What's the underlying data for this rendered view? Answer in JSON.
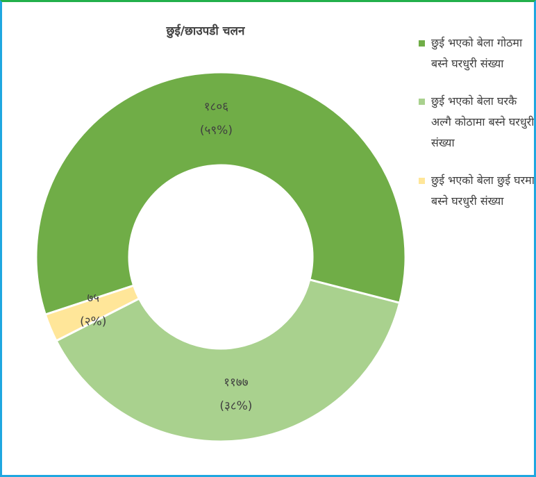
{
  "chart_data": {
    "type": "donut",
    "title": "छुई/छाउपडी चलन",
    "categories": [
      "छुई भएको बेला गोठमा बस्ने घरधुरी संख्या",
      "छुई भएको बेला घरकै अल्गै कोठामा बस्ने घरधुरी संख्या",
      "छुई भएको बेला छुई घरमा बस्ने घरधुरी संख्या"
    ],
    "values": [
      1806,
      1177,
      75
    ],
    "value_labels": [
      "१८०६",
      "११७७",
      "७५"
    ],
    "percent_labels": [
      "(५९%)",
      "(३८%)",
      "(२%)"
    ],
    "colors": [
      "#70ad47",
      "#a9d18e",
      "#ffe699"
    ],
    "legend": "right"
  }
}
